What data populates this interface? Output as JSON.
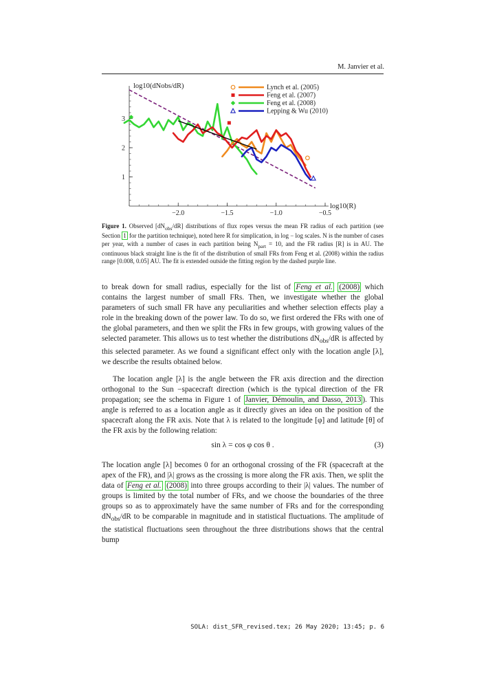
{
  "header": {
    "author": "M. Janvier et al."
  },
  "chart_data": {
    "type": "line",
    "ylabel": "log10(dNobs/dR)",
    "xlabel": "log10(R)",
    "xlim": [
      -2.5,
      -0.5
    ],
    "ylim": [
      0.0,
      4.0
    ],
    "xticks": [
      -2.0,
      -1.5,
      -1.0,
      -0.5
    ],
    "yticks": [
      1,
      2,
      3
    ],
    "xtick_labels": [
      "−2.0",
      "−1.5",
      "−1.0",
      "−0.5"
    ],
    "ytick_labels": [
      "1",
      "2",
      "3"
    ],
    "legend_position": "top-right",
    "series": [
      {
        "name": "Lynch et al. (2005)",
        "color": "#f08a1e",
        "marker": "open-circle",
        "x": [
          -1.55,
          -1.5,
          -1.45,
          -1.4,
          -1.35,
          -1.3,
          -1.25,
          -1.2,
          -1.15,
          -1.1,
          -1.05,
          -1.0,
          -0.95,
          -0.9,
          -0.85,
          -0.8,
          -0.75,
          -0.7
        ],
        "y": [
          1.7,
          1.9,
          2.15,
          2.3,
          2.1,
          2.0,
          2.2,
          1.9,
          1.8,
          2.5,
          2.2,
          2.6,
          2.3,
          2.0,
          2.1,
          1.8,
          1.6,
          1.4
        ],
        "marker_x": -0.68,
        "marker_y": 1.65
      },
      {
        "name": "Feng et al. (2007)",
        "color": "#e01e1e",
        "marker": "filled-square",
        "x": [
          -2.05,
          -2.0,
          -1.95,
          -1.9,
          -1.85,
          -1.8,
          -1.75,
          -1.7,
          -1.65,
          -1.6,
          -1.55,
          -1.5,
          -1.45,
          -1.4,
          -1.35,
          -1.3,
          -1.25,
          -1.2,
          -1.15,
          -1.1,
          -1.05,
          -1.0,
          -0.95,
          -0.9,
          -0.85,
          -0.8,
          -0.75,
          -0.7,
          -0.65
        ],
        "y": [
          2.5,
          2.3,
          2.2,
          2.45,
          2.6,
          2.8,
          2.5,
          2.6,
          2.7,
          2.5,
          2.4,
          2.2,
          2.0,
          2.2,
          2.35,
          2.3,
          2.45,
          2.6,
          2.2,
          2.4,
          2.3,
          2.6,
          2.4,
          2.5,
          2.3,
          1.9,
          1.7,
          1.3,
          1.0
        ],
        "marker_x": -1.48,
        "marker_y": 2.85
      },
      {
        "name": "Feng et al. (2008)",
        "color": "#33d633",
        "marker": "filled-diamond",
        "x": [
          -2.55,
          -2.5,
          -2.45,
          -2.4,
          -2.35,
          -2.3,
          -2.25,
          -2.2,
          -2.15,
          -2.1,
          -2.05,
          -2.0,
          -1.95,
          -1.9,
          -1.85,
          -1.8,
          -1.75,
          -1.7,
          -1.65,
          -1.6,
          -1.55,
          -1.5,
          -1.45,
          -1.4,
          -1.35,
          -1.3,
          -1.25,
          -1.2
        ],
        "y": [
          2.85,
          2.95,
          2.8,
          2.7,
          2.8,
          3.0,
          2.7,
          2.9,
          2.6,
          2.95,
          2.8,
          3.05,
          2.6,
          2.85,
          2.75,
          2.5,
          2.4,
          2.9,
          2.6,
          3.5,
          2.3,
          2.7,
          2.2,
          2.0,
          1.8,
          1.6,
          1.3,
          1.1
        ],
        "marker_x": -2.48,
        "marker_y": 3.05
      },
      {
        "name": "Lepping & Wu (2010)",
        "color": "#1a22c0",
        "marker": "open-triangle",
        "x": [
          -1.35,
          -1.3,
          -1.25,
          -1.2,
          -1.15,
          -1.1,
          -1.05,
          -1.0,
          -0.95,
          -0.9,
          -0.85,
          -0.8,
          -0.75,
          -0.7,
          -0.65
        ],
        "y": [
          1.7,
          1.9,
          2.0,
          1.6,
          1.5,
          1.7,
          2.0,
          1.9,
          2.1,
          2.0,
          1.9,
          1.7,
          1.4,
          1.1,
          0.9
        ],
        "marker_x": -0.62,
        "marker_y": 0.95
      }
    ],
    "fit_line": {
      "color": "#000000",
      "x": [
        -2.0,
        -1.2
      ],
      "y": [
        2.92,
        1.95
      ]
    },
    "fit_extension": {
      "color": "#7a1f7a",
      "style": "dashed",
      "x": [
        -2.5,
        -0.6
      ],
      "y": [
        3.98,
        0.62
      ]
    }
  },
  "caption": {
    "label": "Figure 1.",
    "segments": [
      "Observed [dN",
      "obs",
      "/dR] distributions of flux ropes versus the mean FR radius of each partition (see Section ",
      "1",
      " for the partition technique), noted here R for simplication, in log − log scales. N is the number of cases per year, with a number of cases in each partition being N",
      "part",
      " = 10, and the FR radius [R] is in AU. The continuous black straight line is the fit of the distribution of small FRs from Feng et al. (2008) within the radius range [0.008, 0.05] AU. The fit is extended outside the fitting region by the dashed purple line."
    ]
  },
  "paragraph1": {
    "segments": [
      "to break down for small radius, especially for the list of ",
      "Feng et al.",
      " ",
      "(2008)",
      " which contains the largest number of small FRs. Then, we investigate whether the global parameters of such small FR have any peculiarities and whether selection effects play a role in the breaking down of the power law. To do so, we first ordered the FRs with one of the global parameters, and then we split the FRs in few groups, with growing values of the selected parameter. This allows us to test whether the distributions dN",
      "obs",
      "/dR is affected by this selected parameter. As we found a significant effect only with the location angle [λ], we describe the results obtained below."
    ]
  },
  "paragraph2": {
    "segments": [
      "The location angle [λ] is the angle between the FR axis direction and the direction orthogonal to the Sun −spacecraft direction (which is the typical direction of the FR propagation; see the schema in Figure 1 of ",
      "Janvier, Démoulin, and Dasso, 2013",
      "). This angle is referred to as a location angle as it directly gives an idea on the position of the spacecraft along the FR axis. Note that λ is related to the longitude [φ] and latitude [θ] of the FR axis by the following relation:"
    ]
  },
  "equation": {
    "text": "sin λ = cos φ  cos θ .",
    "number": "(3)"
  },
  "paragraph3": {
    "segments": [
      "The location angle [λ] becomes 0 for an orthogonal crossing of the FR (spacecraft at the apex of the FR), and |λ| grows as the crossing is more along the FR axis. Then, we split the data of ",
      "Feng et al.",
      " ",
      "(2008)",
      " into three groups according to their |λ| values. The number of groups is limited by the total number of FRs, and we choose the boundaries of the three groups so as to approximately have the same number of FRs and for the corresponding dN",
      "obs",
      "/dR to be comparable in magnitude and in statistical fluctuations. The amplitude of the statistical fluctuations seen throughout the three distributions shows that the central bump"
    ]
  },
  "footer": {
    "text": "SOLA: dist_SFR_revised.tex; 26 May 2020; 13:45; p. 6"
  }
}
